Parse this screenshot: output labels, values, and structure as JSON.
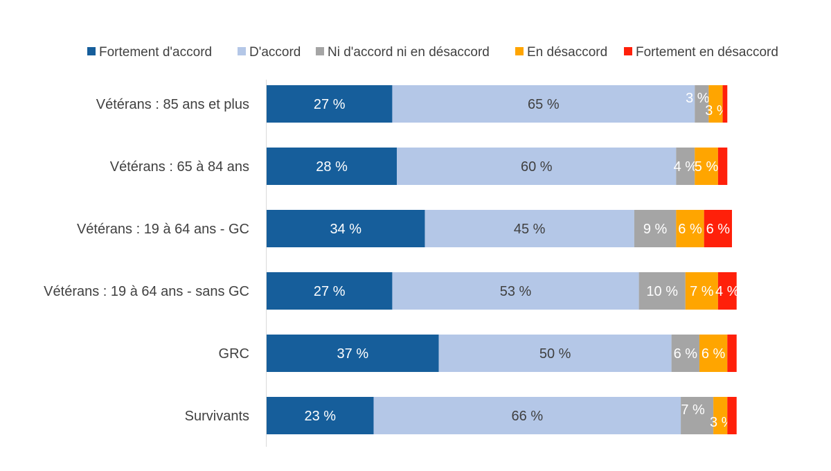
{
  "chart_data": {
    "type": "bar",
    "orientation": "horizontal",
    "stacked": true,
    "title": "",
    "xlabel": "",
    "ylabel": "",
    "xlim": [
      0,
      100
    ],
    "grid": false,
    "legend_position": "top",
    "categories": [
      "Vétérans : 85 ans et plus",
      "Vétérans : 65 à 84 ans",
      "Vétérans : 19 à 64 ans - GC",
      "Vétérans : 19 à 64 ans - sans GC",
      "GRC",
      "Survivants"
    ],
    "series": [
      {
        "name": "Fortement d'accord",
        "color": "#165E9B",
        "label_color": "#ffffff",
        "values": [
          27,
          28,
          34,
          27,
          37,
          23
        ],
        "labels": [
          "27 %",
          "28 %",
          "34 %",
          "27 %",
          "37 %",
          "23 %"
        ]
      },
      {
        "name": "D'accord",
        "color": "#B4C7E7",
        "label_color": "#404040",
        "values": [
          65,
          60,
          45,
          53,
          50,
          66
        ],
        "labels": [
          "65 %",
          "60 %",
          "45 %",
          "53 %",
          "50 %",
          "66 %"
        ]
      },
      {
        "name": "Ni d'accord ni en désaccord",
        "color": "#A5A5A5",
        "label_color": "#ffffff",
        "values": [
          3,
          4,
          9,
          10,
          6,
          7
        ],
        "labels": [
          "3 %",
          "4 %",
          "9 %",
          "10 %",
          "6 %",
          "7 %"
        ]
      },
      {
        "name": "En désaccord",
        "color": "#FFA500",
        "label_color": "#ffffff",
        "values": [
          3,
          5,
          6,
          7,
          6,
          3
        ],
        "labels": [
          "3 %",
          "5 %",
          "6 %",
          "7 %",
          "6 %",
          "3 %"
        ]
      },
      {
        "name": "Fortement en désaccord",
        "color": "#FF200A",
        "label_color": "#ffffff",
        "values": [
          1,
          2,
          6,
          4,
          2,
          2
        ],
        "labels": [
          "",
          "",
          "6 %",
          "4 %",
          "",
          ""
        ]
      }
    ]
  }
}
